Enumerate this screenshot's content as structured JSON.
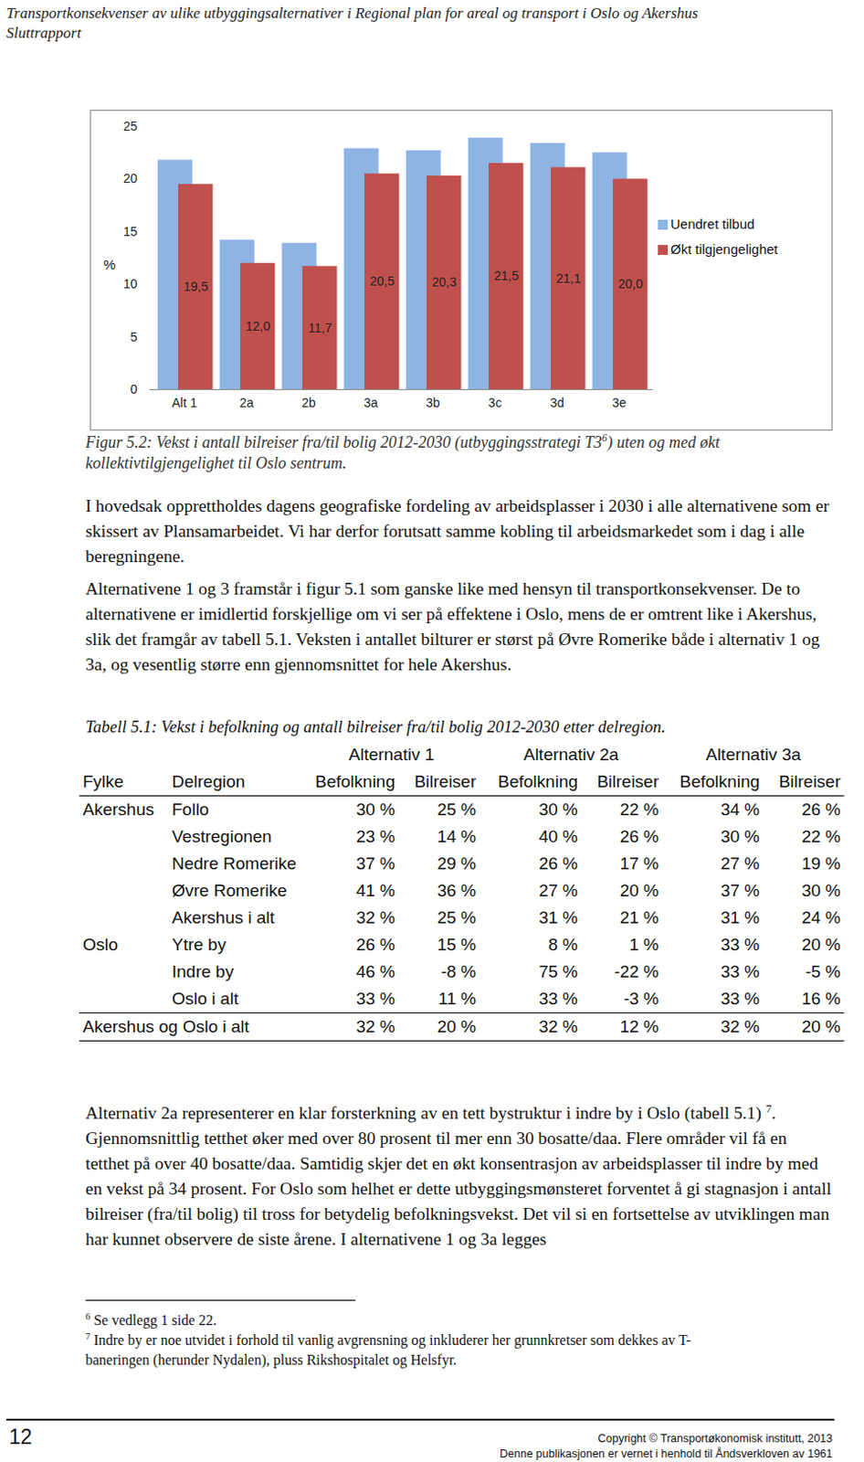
{
  "header": {
    "lines": [
      "Transportkonsekvenser av ulike utbyggingsalternativer i Regional plan for areal og transport i Oslo og Akershus",
      "Sluttrapport"
    ]
  },
  "chart_data": {
    "type": "bar",
    "categories": [
      "Alt 1",
      "2a",
      "2b",
      "3a",
      "3b",
      "3c",
      "3d",
      "3e"
    ],
    "series": [
      {
        "name": "Uendret tilbud",
        "color": "#8eb4e3",
        "values": [
          21.8,
          14.2,
          13.9,
          22.9,
          22.7,
          23.9,
          23.4,
          22.5
        ]
      },
      {
        "name": "Økt tilgjengelighet",
        "color": "#c0504d",
        "values": [
          19.5,
          12.0,
          11.7,
          20.5,
          20.3,
          21.5,
          21.1,
          20.0
        ],
        "value_labels": [
          "19,5",
          "12,0",
          "11,7",
          "20,5",
          "20,3",
          "21,5",
          "21,1",
          "20,0"
        ]
      }
    ],
    "ylabel": "%",
    "ylim": [
      0,
      25
    ],
    "yticks": [
      0,
      5,
      10,
      15,
      20,
      25
    ],
    "legend": "right",
    "data_labels": true,
    "grid": false
  },
  "caption": [
    {
      "text": "Figur 5.2: Vekst i antall bilreiser fra/til bolig 2012-2030 (utbyggingsstrategi T3"
    },
    {
      "sup": "6"
    },
    {
      "text": ") uten og med økt kollektivtilgjengelighet til Oslo sentrum."
    }
  ],
  "paragraphs": [
    [
      {
        "text": "I hovedsak opprettholdes dagens geografiske fordeling av arbeidsplasser i 2030 i alle alternativene som er skissert av Plansamarbeidet. Vi har derfor forutsatt samme kobling til arbeidsmarkedet som i dag i alle beregningene."
      }
    ],
    [
      {
        "text": "Alternativene 1 og 3 framstår i figur 5.1 som ganske like med hensyn til transportkonsekvenser. De to alternativene er imidlertid forskjellige om vi ser på effektene i Oslo, mens de er omtrent like i Akershus, slik det framgår av tabell 5.1. Veksten i antallet bilturer er størst på Øvre Romerike både i alternativ 1 og 3a, og vesentlig større enn gjennomsnittet for hele Akershus."
      }
    ],
    [
      {
        "text": "Alternativ 2a representerer en klar forsterkning av en tett bystruktur i indre by i Oslo (tabell 5.1) "
      },
      {
        "sup": "7"
      },
      {
        "text": ". Gjennomsnittlig tetthet øker med over 80 prosent til mer enn 30 bosatte/daa. Flere områder vil få en tetthet på over 40 bosatte/daa. Samtidig skjer det en økt konsentrasjon av arbeidsplasser til indre by med en vekst på 34 prosent. For Oslo som helhet er dette utbyggingsmønsteret forventet å gi stagnasjon i antall bilreiser (fra/til bolig) til tross for betydelig befolkningsvekst. Det vil si en fortsettelse av utviklingen man har kunnet observere de siste årene. I alternativene 1 og 3a legges"
      }
    ]
  ],
  "table": {
    "title": "Tabell 5.1: Vekst i befolkning og antall bilreiser fra/til bolig 2012-2030 etter delregion.",
    "groups": [
      "Alternativ 1",
      "Alternativ 2a",
      "Alternativ 3a"
    ],
    "columns": [
      "Fylke",
      "Delregion",
      "Befolkning",
      "Bilreiser",
      "Befolkning",
      "Bilreiser",
      "Befolkning",
      "Bilreiser"
    ],
    "sections": [
      {
        "fylke": "Akershus",
        "rows": [
          {
            "delregion": "Follo",
            "values": [
              "30 %",
              "25 %",
              "30 %",
              "22 %",
              "34 %",
              "26 %"
            ]
          },
          {
            "delregion": "Vestregionen",
            "values": [
              "23 %",
              "14 %",
              "40 %",
              "26 %",
              "30 %",
              "22 %"
            ]
          },
          {
            "delregion": "Nedre Romerike",
            "values": [
              "37 %",
              "29 %",
              "26 %",
              "17 %",
              "27 %",
              "19 %"
            ]
          },
          {
            "delregion": "Øvre Romerike",
            "values": [
              "41 %",
              "36 %",
              "27 %",
              "20 %",
              "37 %",
              "30 %"
            ]
          },
          {
            "delregion": "Akershus i alt",
            "values": [
              "32 %",
              "25 %",
              "31 %",
              "21 %",
              "31 %",
              "24 %"
            ]
          }
        ]
      },
      {
        "fylke": "Oslo",
        "rows": [
          {
            "delregion": "Ytre by",
            "values": [
              "26 %",
              "15 %",
              "8 %",
              "1 %",
              "33 %",
              "20 %"
            ]
          },
          {
            "delregion": "Indre by",
            "values": [
              "46 %",
              "-8 %",
              "75 %",
              "-22 %",
              "33 %",
              "-5 %"
            ]
          },
          {
            "delregion": "Oslo i alt",
            "values": [
              "33 %",
              "11 %",
              "33 %",
              "-3 %",
              "33 %",
              "16 %"
            ]
          }
        ]
      }
    ],
    "total": {
      "label": "Akershus og Oslo i alt",
      "values": [
        "32 %",
        "20 %",
        "32 %",
        "12 %",
        "32 %",
        "20 %"
      ]
    }
  },
  "footnotes": [
    {
      "mark": "6",
      "text": "Se vedlegg 1 side 22."
    },
    {
      "mark": "7",
      "text": "Indre by er noe utvidet i forhold til vanlig avgrensning og inkluderer her grunnkretser som dekkes av T-baneringen (herunder Nydalen), pluss Rikshospitalet og Helsfyr."
    }
  ],
  "footer": {
    "page": "12",
    "lines": [
      "Copyright © Transportøkonomisk institutt, 2013",
      "Denne publikasjonen er vernet i henhold til Åndsverkloven av 1961"
    ]
  }
}
